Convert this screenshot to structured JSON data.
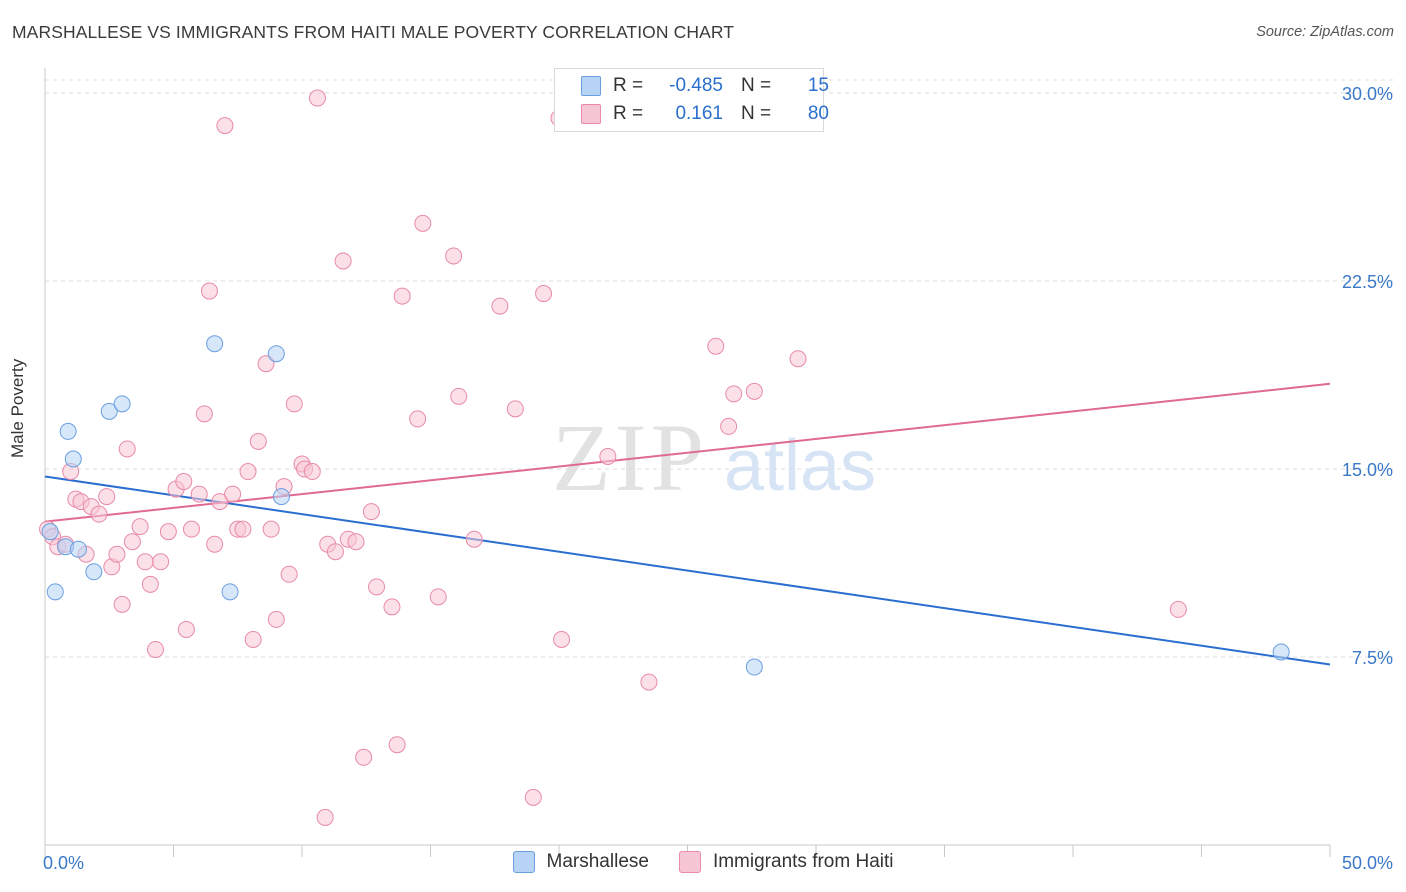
{
  "title": "MARSHALLESE VS IMMIGRANTS FROM HAITI MALE POVERTY CORRELATION CHART",
  "source": "Source: ZipAtlas.com",
  "colors": {
    "blue_fill": "#b7d3f5",
    "blue_stroke": "#6a9fe0",
    "blue_line": "#2a6fd0",
    "pink_fill": "#f7c6d5",
    "pink_stroke": "#e88aa8",
    "pink_line": "#e06a93",
    "axis_text": "#3a78c8",
    "grid": "#dedede"
  },
  "legend_top": [
    {
      "r_label": "R =",
      "r_value": "-0.485",
      "n_label": "N =",
      "n_value": "15",
      "series": "blue"
    },
    {
      "r_label": "R =",
      "r_value": "0.161",
      "n_label": "N =",
      "n_value": "80",
      "series": "pink"
    }
  ],
  "legend_bottom": [
    {
      "label": "Marshallese",
      "series": "blue"
    },
    {
      "label": "Immigrants from Haiti",
      "series": "pink"
    }
  ],
  "chart_data": {
    "type": "scatter",
    "title": "MARSHALLESE VS IMMIGRANTS FROM HAITI MALE POVERTY CORRELATION CHART",
    "xlabel": "",
    "ylabel": "Male Poverty",
    "xlim": [
      0,
      50
    ],
    "ylim": [
      0,
      30.6
    ],
    "x_tick_labels": [
      "0.0%",
      "50.0%"
    ],
    "y_ticks": [
      7.5,
      15.0,
      22.5,
      30.0
    ],
    "y_tick_labels": [
      "7.5%",
      "15.0%",
      "22.5%",
      "30.0%"
    ],
    "grid": "horizontal dashed",
    "watermark": "ZIPatlas",
    "series": [
      {
        "name": "Marshallese",
        "color": "blue",
        "points": [
          [
            0.2,
            12.5
          ],
          [
            0.4,
            10.1
          ],
          [
            0.8,
            11.9
          ],
          [
            0.9,
            16.5
          ],
          [
            1.1,
            15.4
          ],
          [
            1.3,
            11.8
          ],
          [
            1.9,
            10.9
          ],
          [
            2.5,
            17.3
          ],
          [
            3.0,
            17.6
          ],
          [
            6.6,
            20.0
          ],
          [
            7.2,
            10.1
          ],
          [
            9.0,
            19.6
          ],
          [
            9.2,
            13.9
          ],
          [
            27.6,
            7.1
          ],
          [
            48.1,
            7.7
          ]
        ],
        "trend": {
          "x": [
            0,
            50
          ],
          "y": [
            14.7,
            7.2
          ]
        }
      },
      {
        "name": "Immigrants from Haiti",
        "color": "pink",
        "points": [
          [
            0.1,
            12.6
          ],
          [
            0.3,
            12.3
          ],
          [
            0.5,
            11.9
          ],
          [
            0.8,
            12.0
          ],
          [
            1.0,
            14.9
          ],
          [
            1.2,
            13.8
          ],
          [
            1.4,
            13.7
          ],
          [
            1.6,
            11.6
          ],
          [
            1.8,
            13.5
          ],
          [
            2.1,
            13.2
          ],
          [
            2.4,
            13.9
          ],
          [
            2.6,
            11.1
          ],
          [
            2.8,
            11.6
          ],
          [
            3.0,
            9.6
          ],
          [
            3.2,
            15.8
          ],
          [
            3.4,
            12.1
          ],
          [
            3.7,
            12.7
          ],
          [
            3.9,
            11.3
          ],
          [
            4.1,
            10.4
          ],
          [
            4.3,
            7.8
          ],
          [
            4.5,
            11.3
          ],
          [
            4.8,
            12.5
          ],
          [
            5.1,
            14.2
          ],
          [
            5.4,
            14.5
          ],
          [
            5.5,
            8.6
          ],
          [
            5.7,
            12.6
          ],
          [
            6.0,
            14.0
          ],
          [
            6.2,
            17.2
          ],
          [
            6.4,
            22.1
          ],
          [
            6.6,
            12.0
          ],
          [
            6.8,
            13.7
          ],
          [
            7.0,
            28.7
          ],
          [
            7.3,
            14.0
          ],
          [
            7.5,
            12.6
          ],
          [
            7.7,
            12.6
          ],
          [
            7.9,
            14.9
          ],
          [
            8.1,
            8.2
          ],
          [
            8.3,
            16.1
          ],
          [
            8.6,
            19.2
          ],
          [
            8.8,
            12.6
          ],
          [
            9.0,
            9.0
          ],
          [
            9.3,
            14.3
          ],
          [
            9.5,
            10.8
          ],
          [
            9.7,
            17.6
          ],
          [
            10.0,
            15.2
          ],
          [
            10.1,
            15.0
          ],
          [
            10.4,
            14.9
          ],
          [
            10.6,
            29.8
          ],
          [
            10.9,
            1.1
          ],
          [
            11.0,
            12.0
          ],
          [
            11.3,
            11.7
          ],
          [
            11.6,
            23.3
          ],
          [
            11.8,
            12.2
          ],
          [
            12.1,
            12.1
          ],
          [
            12.4,
            3.5
          ],
          [
            12.7,
            13.3
          ],
          [
            12.9,
            10.3
          ],
          [
            13.5,
            9.5
          ],
          [
            13.7,
            4.0
          ],
          [
            13.9,
            21.9
          ],
          [
            14.5,
            17.0
          ],
          [
            14.7,
            24.8
          ],
          [
            15.3,
            9.9
          ],
          [
            15.9,
            23.5
          ],
          [
            16.1,
            17.9
          ],
          [
            16.7,
            12.2
          ],
          [
            17.7,
            21.5
          ],
          [
            18.3,
            17.4
          ],
          [
            19.0,
            1.9
          ],
          [
            19.4,
            22.0
          ],
          [
            20.0,
            29.0
          ],
          [
            20.1,
            8.2
          ],
          [
            21.9,
            15.5
          ],
          [
            23.5,
            6.5
          ],
          [
            26.1,
            19.9
          ],
          [
            26.6,
            16.7
          ],
          [
            26.8,
            18.0
          ],
          [
            27.6,
            18.1
          ],
          [
            29.3,
            19.4
          ],
          [
            44.1,
            9.4
          ]
        ],
        "trend": {
          "x": [
            0,
            50
          ],
          "y": [
            12.9,
            18.4
          ]
        }
      }
    ]
  }
}
